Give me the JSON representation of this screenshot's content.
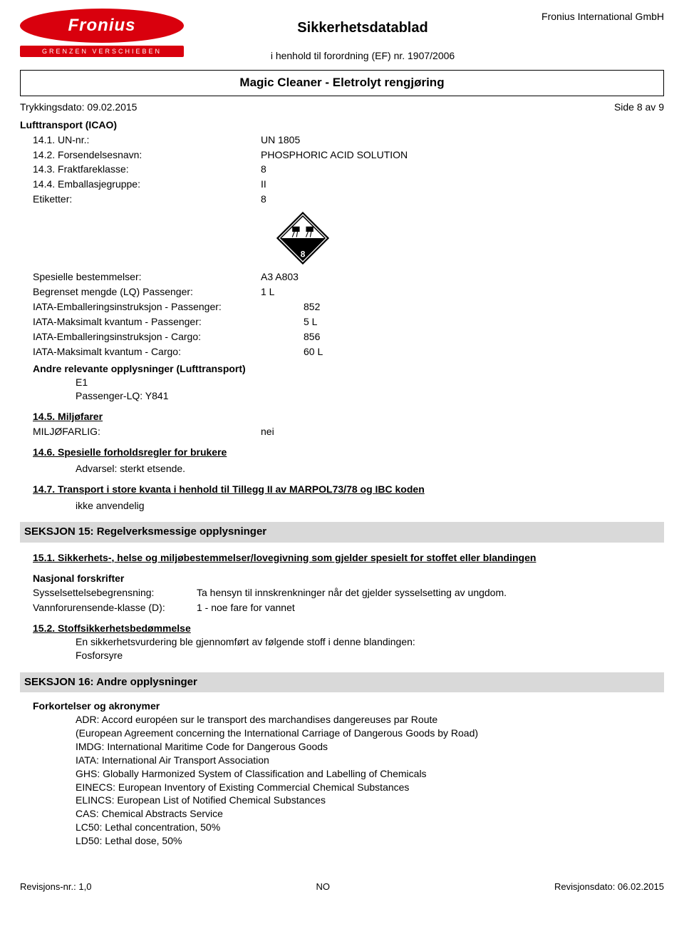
{
  "header": {
    "logo_text": "Fronius",
    "logo_tagline": "GRENZEN VERSCHIEBEN",
    "title": "Sikkerhetsdatablad",
    "subtitle": "i henhold til forordning (EF) nr. 1907/2006",
    "company": "Fronius International GmbH",
    "product": "Magic Cleaner - Eletrolyt rengjøring",
    "print_date_label": "Trykkingsdato: 09.02.2015",
    "page_label": "Side 8 av 9"
  },
  "icao": {
    "heading": "Lufttransport (ICAO)",
    "rows": [
      {
        "label": "14.1. UN-nr.:",
        "value": "UN 1805"
      },
      {
        "label": "14.2. Forsendelsesnavn:",
        "value": "PHOSPHORIC ACID SOLUTION"
      },
      {
        "label": "14.3. Fraktfareklasse:",
        "value": "8"
      },
      {
        "label": "14.4. Emballasjegruppe:",
        "value": "II"
      },
      {
        "label": "Etiketter:",
        "value": "8"
      }
    ]
  },
  "hazard": {
    "class_number": "8",
    "outer_fill": "#ffffff",
    "outer_stroke": "#000000",
    "inner_fill": "#000000"
  },
  "special": {
    "rows": [
      {
        "label": "Spesielle bestemmelser:",
        "value": "A3 A803"
      },
      {
        "label": "Begrenset mengde (LQ) Passenger:",
        "value": "1 L"
      },
      {
        "label": "IATA-Emballeringsinstruksjon - Passenger:",
        "value": "852"
      },
      {
        "label": "IATA-Maksimalt kvantum - Passenger:",
        "value": "5 L"
      },
      {
        "label": "IATA-Emballeringsinstruksjon - Cargo:",
        "value": "856"
      },
      {
        "label": "IATA-Maksimalt kvantum - Cargo:",
        "value": "60 L"
      }
    ],
    "other_heading": "Andre relevante opplysninger (Lufttransport)",
    "other_lines": [
      "E1",
      "Passenger-LQ: Y841"
    ]
  },
  "s14_5": {
    "heading": "14.5. Miljøfarer",
    "row": {
      "label": "MILJØFARLIG:",
      "value": "nei"
    }
  },
  "s14_6": {
    "heading": "14.6. Spesielle forholdsregler for brukere",
    "text": "Advarsel: sterkt etsende."
  },
  "s14_7": {
    "heading": "14.7. Transport i store kvanta i henhold til Tillegg II av MARPOL73/78 og IBC koden",
    "text": "ikke anvendelig"
  },
  "section15": {
    "bar": "SEKSJON 15: Regelverksmessige opplysninger",
    "s15_1_heading": "15.1. Sikkerhets-, helse og miljøbestemmelser/lovegivning som gjelder spesielt for stoffet eller blandingen",
    "national_heading": "Nasjonal forskrifter",
    "rows": [
      {
        "label": "Sysselsettelsebegrensning:",
        "value": "Ta hensyn til innskrenkninger når det gjelder sysselsetting av ungdom."
      },
      {
        "label": "Vannforurensende-klasse (D):",
        "value": "1 - noe fare for vannet"
      }
    ],
    "s15_2_heading": "15.2. Stoffsikkerhetsbedømmelse",
    "s15_2_lines": [
      "En sikkerhetsvurdering ble gjennomført av følgende stoff i denne blandingen:",
      "Fosforsyre"
    ]
  },
  "section16": {
    "bar": "SEKSJON 16: Andre opplysninger",
    "abbrev_heading": "Forkortelser og akronymer",
    "lines": [
      "ADR: Accord européen sur le transport des marchandises dangereuses par Route",
      "(European Agreement concerning the International Carriage of Dangerous Goods by Road)",
      "IMDG: International Maritime Code for Dangerous Goods",
      "IATA: International Air Transport Association",
      "GHS: Globally Harmonized System of Classification and Labelling of Chemicals",
      "EINECS: European Inventory of Existing Commercial Chemical Substances",
      "ELINCS: European List of Notified Chemical Substances",
      "CAS: Chemical Abstracts Service",
      "LC50: Lethal concentration, 50%",
      "LD50: Lethal dose, 50%"
    ]
  },
  "footer": {
    "left": "Revisjons-nr.: 1,0",
    "center": "NO",
    "right": "Revisjonsdato: 06.02.2015"
  }
}
